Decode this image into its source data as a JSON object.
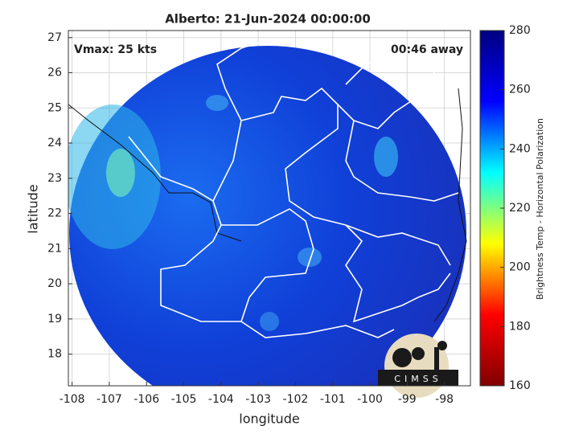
{
  "chart_data": {
    "type": "map",
    "title": "Alberto: 21-Jun-2024 00:00:00",
    "annotations": [
      "Vmax: 25 kts",
      "00:46 away"
    ],
    "xlabel": "longitude",
    "ylabel": "latitude",
    "colorbar_label": "Brightness Temp - Horizontal Polarization",
    "logo": "CIMSS",
    "xlim": [
      -108.1,
      -97.3
    ],
    "xticks": [
      -108,
      -107,
      -106,
      -105,
      -104,
      -103,
      -102,
      -101,
      -100,
      -99,
      -98
    ],
    "ylim": [
      17.1,
      27.2
    ],
    "yticks": [
      18,
      19,
      20,
      21,
      22,
      23,
      24,
      25,
      26,
      27
    ],
    "clim": [
      160,
      280
    ],
    "cticks": [
      160,
      180,
      200,
      220,
      240,
      260,
      280
    ],
    "colormap": [
      "#800000",
      "#ff0000",
      "#ffff00",
      "#00ffff",
      "#0000ff",
      "#000080"
    ],
    "grid": true
  }
}
